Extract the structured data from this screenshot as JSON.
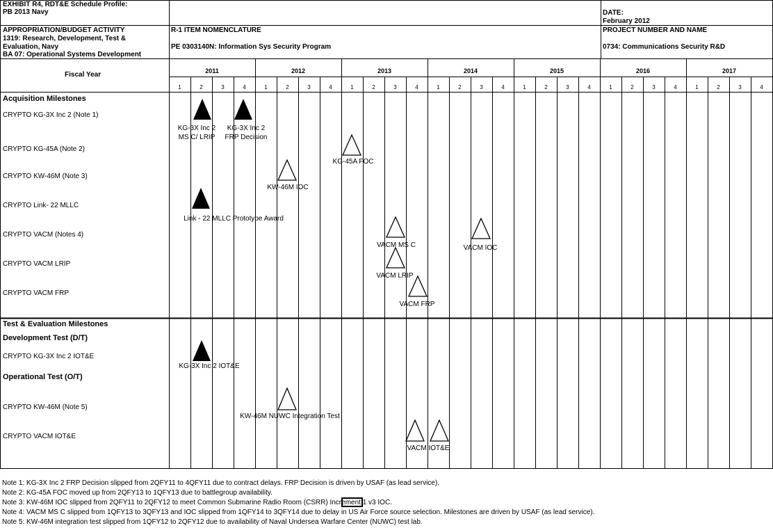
{
  "header": {
    "exhibit_title": "EXHIBIT R4, RDT&E Schedule Profile:",
    "pb": "PB 2013 Navy",
    "date_label": "DATE:",
    "date_value": "February 2012",
    "activity_label": "APPROPRIATION/BUDGET ACTIVITY",
    "activity_line1": "1319:  Research, Development, Test &",
    "activity_line2": "Evaluation, Navy",
    "activity_line3": "BA 07:  Operational Systems Development",
    "nomenclature_label": "R-1 ITEM NOMENCLATURE",
    "nomenclature_value": "PE 0303140N:  Information Sys Security Program",
    "project_label": "PROJECT NUMBER AND NAME",
    "project_value": "0734: Communications Security R&D",
    "fiscal_year_label": "Fiscal Year"
  },
  "years": [
    "2011",
    "2012",
    "2013",
    "2014",
    "2015",
    "2016",
    "2017"
  ],
  "quarters": [
    "1",
    "2",
    "3",
    "4"
  ],
  "sections": {
    "acquisition": "Acquisition Milestones",
    "test_eval": "Test & Evaluation Milestones",
    "dev_test": "Development Test (D/T)",
    "op_test": "Operational Test (O/T)"
  },
  "rows": {
    "kg3x": "CRYPTO  KG-3X Inc 2 (Note 1)",
    "kg45a": "CRYPTO  KG-45A (Note 2)",
    "kw46m": "CRYPTO  KW-46M  (Note 3)",
    "link22": "CRYPTO  Link- 22 MLLC",
    "vacm": "CRYPTO  VACM (Notes 4)",
    "vacm_lrip": "CRYPTO  VACM LRIP",
    "vacm_frp": "CRYPTO  VACM FRP",
    "kg3x_iote": "CRYPTO  KG-3X Inc 2  IOT&E",
    "kw46m_test": "CRYPTO  KW-46M (Note 5)",
    "vacm_iote": "CRYPTO  VACM IOT&E"
  },
  "milestones": {
    "kg3x_msc_line1": "KG-3X Inc 2",
    "kg3x_msc_line2": "MS C/ LRIP",
    "kg3x_frp_line1": "KG-3X Inc 2",
    "kg3x_frp_line2": "FRP Decision",
    "kg45a_foc": "KG-45A FOC",
    "kw46m_ioc": "KW-46M IOC",
    "link22_award": "Link - 22 MLLC Prototype Award",
    "vacm_msc": "VACM MS C",
    "vacm_ioc": "VACM IOC",
    "vacm_lrip": "VACM LRIP",
    "vacm_frp": "VACM FRP",
    "kg3x_iote": "KG-3X Inc 2 IOT&E",
    "kw46m_test": "KW-46M NUWC Integration Test",
    "vacm_iote": "VACM IOT&E"
  },
  "notes": [
    "Note 1: KG-3X Inc 2 FRP Decision slipped from 2QFY11 to 4QFY11 due to contract delays. FRP Decision is driven by USAF (as lead service).",
    "Note 2: KG-45A FOC  moved up from 2QFY13 to 1QFY13 due to battlegroup availability.",
    "Note 3: KW-46M IOC slipped from 2QFY11 to 2QFY12 to meet Common Submarine Radio Room (CSRR) Increment 1 v3 IOC.",
    "Note 4: VACM MS C slipped from 1QFY13 to 3QFY13 and IOC slipped from 1QFY14 to 3QFY14 due to delay in US Air Force source selection. Milestones are driven by USAF (as lead service).",
    "Note 5: KW-46M integration test slipped from 1QFY12 to 2QFY12 due to availability of Naval Undersea Warfare Center (NUWC) test lab."
  ]
}
